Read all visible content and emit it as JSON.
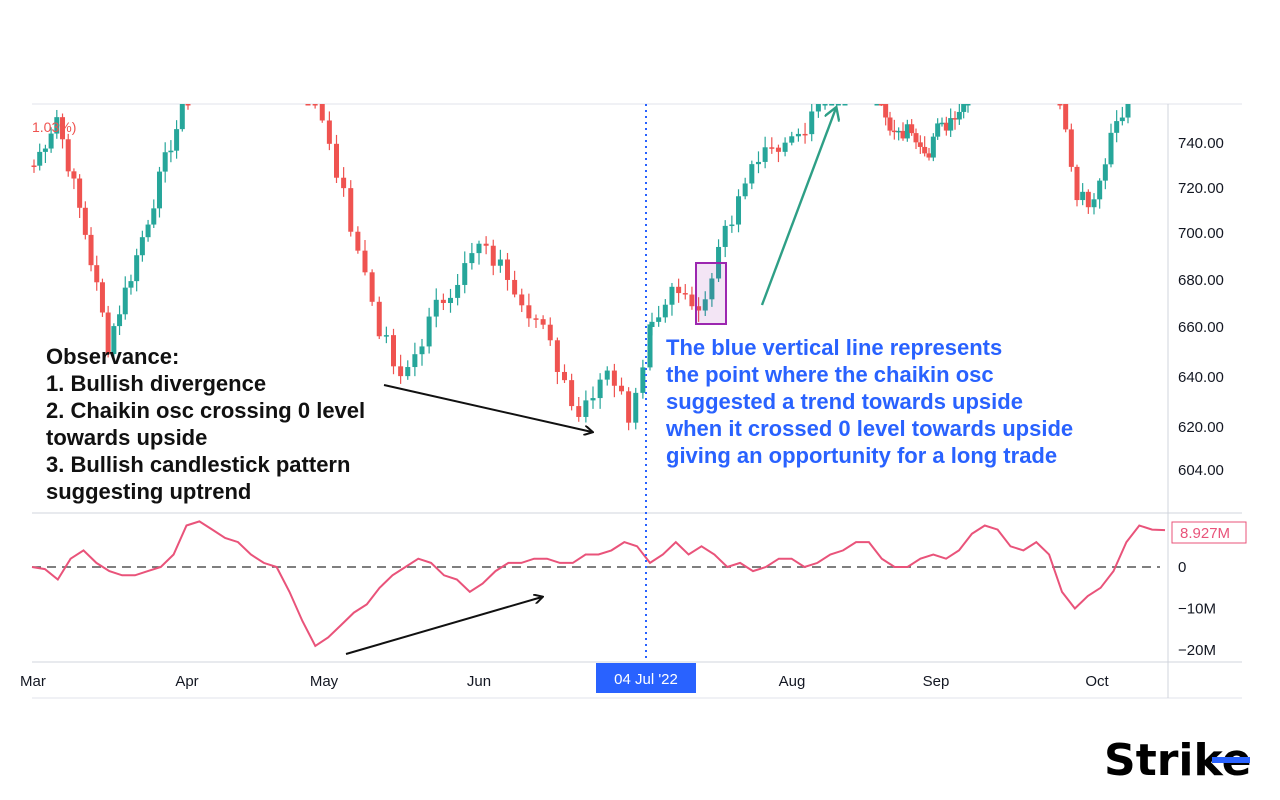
{
  "colors": {
    "up": "#26a69a",
    "down": "#ef5350",
    "oscillator": "#e9537a",
    "marker_line": "#2962ff",
    "annotation_arrow": "#2e9f86",
    "highlight_box": "#9c27b0",
    "zero_line": "#555555"
  },
  "header": {
    "change_label": "1.03%)"
  },
  "annotations": {
    "observance": [
      "Observance:",
      "1. Bullish divergence",
      "2. Chaikin osc crossing 0 level",
      "towards upside",
      "3. Bullish candlestick pattern",
      "suggesting uptrend"
    ],
    "blue_note": [
      "The blue vertical line represents",
      "the point where the chaikin osc",
      "suggested a trend towards upside",
      "when it crossed 0 level towards upside",
      "giving an opportunity for a long trade"
    ]
  },
  "marker": {
    "date_label": "04 Jul '22"
  },
  "oscillator_value_label": "8.927M",
  "logo": {
    "text": "Strike"
  },
  "chart_data": [
    {
      "type": "candlestick",
      "title": "",
      "x_labels": [
        "Mar",
        "Apr",
        "May",
        "Jun",
        "Aug",
        "Sep",
        "Oct"
      ],
      "price_ticks": [
        "740.00",
        "720.00",
        "700.00",
        "680.00",
        "660.00",
        "640.00",
        "620.00",
        "604.00"
      ],
      "price_tick_values": [
        740,
        720,
        700,
        680,
        660,
        640,
        620,
        604
      ],
      "ylim": [
        597,
        770
      ],
      "grid": false,
      "segments": [
        {
          "name": "mar-apr",
          "start_price": 730,
          "points": [
            [
              4,
              752
            ],
            [
              9,
              700
            ],
            [
              13,
              653
            ],
            [
              18,
              690
            ],
            [
              24,
              740
            ],
            [
              27,
              760
            ]
          ]
        },
        {
          "name": "may-jul",
          "start_price": 770,
          "points": [
            [
              6,
              705
            ],
            [
              10,
              660
            ],
            [
              13,
              637
            ],
            [
              18,
              668
            ],
            [
              24,
              694
            ],
            [
              28,
              683
            ],
            [
              33,
              658
            ],
            [
              38,
              626
            ],
            [
              42,
              645
            ],
            [
              45,
              625
            ],
            [
              48,
              660
            ]
          ]
        },
        {
          "name": "jul-aug",
          "start_price": 660,
          "points": [
            [
              4,
              678
            ],
            [
              7,
              668
            ],
            [
              11,
              700
            ],
            [
              15,
              732
            ],
            [
              18,
              738
            ],
            [
              22,
              740
            ],
            [
              27,
              765
            ],
            [
              29,
              770
            ]
          ]
        },
        {
          "name": "aug-sep",
          "start_price": 765,
          "points": [
            [
              4,
              745
            ],
            [
              8,
              748
            ],
            [
              12,
              732
            ],
            [
              15,
              752
            ],
            [
              18,
              746
            ],
            [
              21,
              760
            ]
          ]
        },
        {
          "name": "oct",
          "start_price": 760,
          "points": [
            [
              3,
              715
            ],
            [
              6,
              715
            ],
            [
              9,
              742
            ],
            [
              12,
              760
            ]
          ]
        }
      ]
    },
    {
      "type": "line",
      "name_label": "",
      "y_ticks": [
        "0",
        "−10M",
        "−20M"
      ],
      "y_tick_values": [
        0,
        -10,
        -20
      ],
      "ylim": [
        -22,
        12
      ],
      "zero_line": "dashed",
      "values": [
        0,
        -0.5,
        -3,
        2,
        4,
        1,
        -1,
        -2,
        -2,
        -1,
        0,
        3,
        10,
        11,
        9,
        7,
        6,
        3,
        1,
        0,
        -6,
        -13,
        -19,
        -17,
        -14,
        -11,
        -9,
        -5,
        -2,
        0,
        2,
        1,
        -2,
        -3,
        -6,
        -4,
        -1,
        1,
        1,
        2,
        2,
        1,
        1,
        3,
        3,
        4,
        6,
        5,
        1,
        3,
        6,
        3,
        5,
        3,
        0,
        1,
        -1,
        0,
        2,
        2,
        0,
        1,
        3,
        4,
        6,
        6,
        2,
        0,
        0,
        2,
        3,
        2,
        4,
        8,
        10,
        9,
        5,
        4,
        6,
        3,
        -6,
        -10,
        -7,
        -5,
        -1,
        6,
        10,
        9,
        8.9
      ]
    }
  ]
}
